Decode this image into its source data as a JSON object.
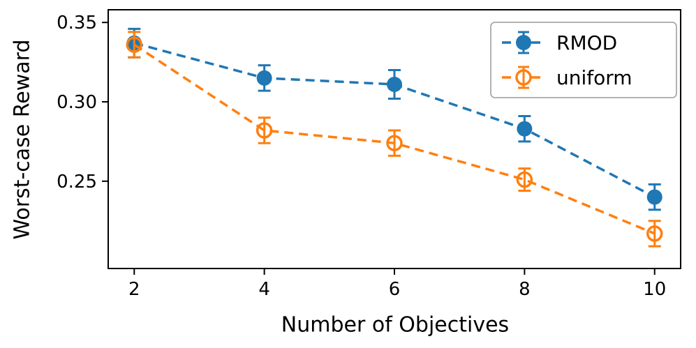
{
  "chart_data": {
    "type": "line",
    "title": "",
    "xlabel": "Number of Objectives",
    "ylabel": "Worst-case Reward",
    "x": [
      2,
      4,
      6,
      8,
      10
    ],
    "xticklabels": [
      "2",
      "4",
      "6",
      "8",
      "10"
    ],
    "yticks": [
      0.25,
      0.3,
      0.35
    ],
    "yticklabels": [
      "0.25",
      "0.30",
      "0.35"
    ],
    "xlim": [
      1.6,
      10.4
    ],
    "ylim": [
      0.195,
      0.358
    ],
    "grid": false,
    "legend_position": "upper right",
    "linestyle": "dashed",
    "series": [
      {
        "name": "RMOD",
        "color": "#1f77b4",
        "marker": "filled-circle",
        "values": [
          0.337,
          0.315,
          0.311,
          0.283,
          0.24
        ],
        "errors": [
          0.009,
          0.008,
          0.009,
          0.008,
          0.008
        ]
      },
      {
        "name": "uniform",
        "color": "#ff7f0e",
        "marker": "open-circle",
        "values": [
          0.336,
          0.282,
          0.274,
          0.251,
          0.217
        ],
        "errors": [
          0.008,
          0.008,
          0.008,
          0.007,
          0.008
        ]
      }
    ]
  }
}
